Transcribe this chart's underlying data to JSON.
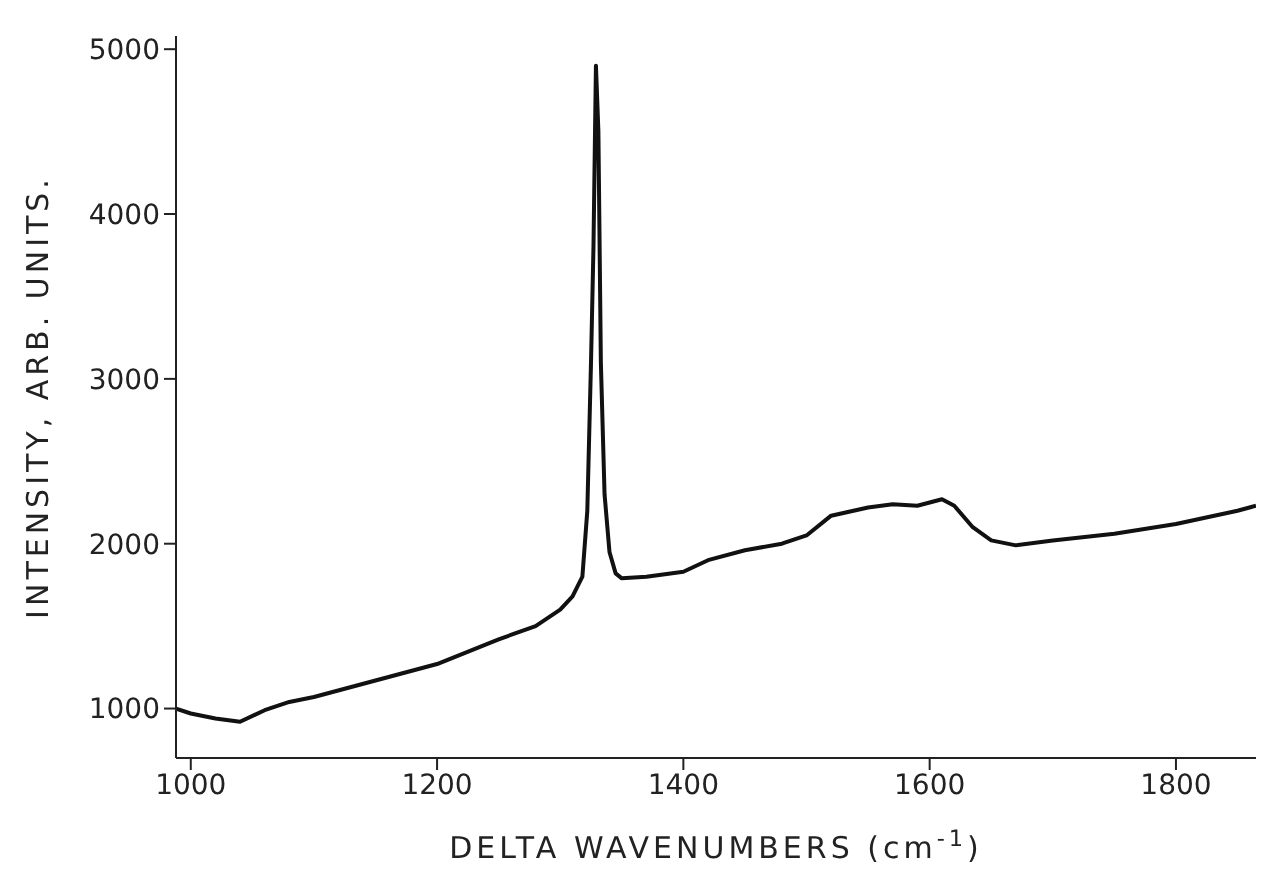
{
  "chart_data": {
    "type": "line",
    "xlabel": "DELTA  WAVENUMBERS (cm$^{-1}$)",
    "ylabel": "INTENSITY,  ARB. UNITS.",
    "xlim": [
      988,
      1865
    ],
    "ylim": [
      700,
      5080
    ],
    "xticks": [
      1000,
      1200,
      1400,
      1600,
      1800
    ],
    "yticks": [
      1000,
      2000,
      3000,
      4000,
      5000
    ],
    "grid": false,
    "legend": false,
    "marker": "none",
    "line_style": "solid",
    "series": [
      {
        "color": "#111111",
        "x": [
          988,
          1000,
          1020,
          1040,
          1060,
          1080,
          1100,
          1150,
          1200,
          1250,
          1280,
          1300,
          1310,
          1318,
          1322,
          1325,
          1327,
          1329,
          1331,
          1333,
          1336,
          1340,
          1345,
          1350,
          1370,
          1400,
          1420,
          1450,
          1480,
          1500,
          1520,
          1550,
          1570,
          1590,
          1610,
          1620,
          1635,
          1650,
          1670,
          1700,
          1750,
          1800,
          1850,
          1865
        ],
        "values": [
          1000,
          970,
          940,
          920,
          990,
          1040,
          1070,
          1170,
          1270,
          1420,
          1500,
          1600,
          1680,
          1800,
          2200,
          3100,
          3800,
          4900,
          4500,
          3100,
          2300,
          1950,
          1820,
          1790,
          1800,
          1830,
          1900,
          1960,
          2000,
          2050,
          2170,
          2220,
          2240,
          2230,
          2270,
          2230,
          2100,
          2020,
          1990,
          2020,
          2060,
          2120,
          2200,
          2230
        ]
      }
    ]
  }
}
